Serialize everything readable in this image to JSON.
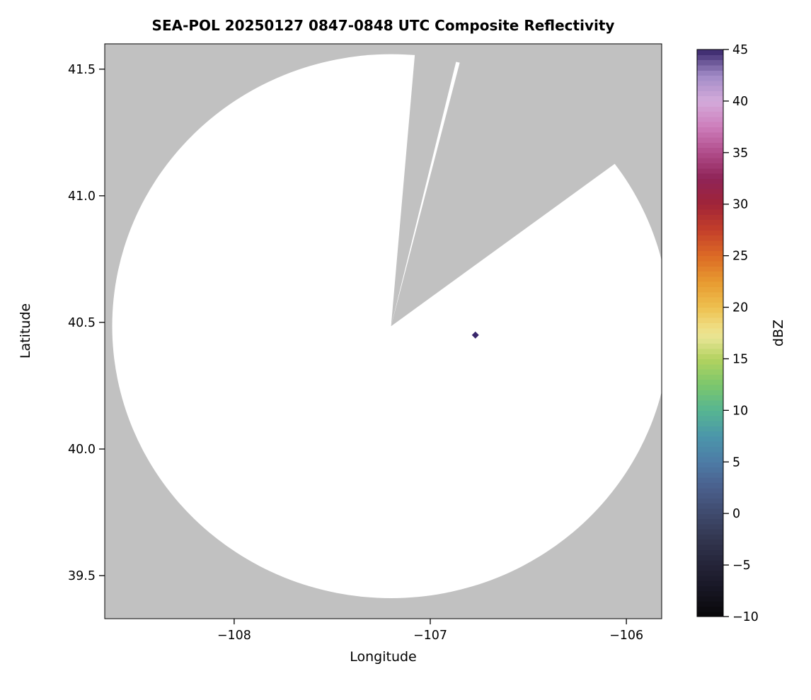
{
  "figure": {
    "background": "#ffffff"
  },
  "chart_data": {
    "type": "heatmap",
    "subtype": "radar-ppi-composite-reflectivity",
    "title": "SEA-POL 20250127 0847-0848 UTC Composite Reflectivity",
    "xlabel": "Longitude",
    "ylabel": "Latitude",
    "xlim": [
      -108.66,
      -105.82
    ],
    "ylim": [
      39.33,
      41.6
    ],
    "xticks": [
      -108,
      -107,
      -106
    ],
    "yticks": [
      39.5,
      40.0,
      40.5,
      41.0,
      41.5
    ],
    "grid": false,
    "plot_background": "#c1c1c1",
    "radar_coverage": {
      "fill": "#ffffff",
      "center": {
        "lon": -107.2,
        "lat": 40.485
      },
      "radius_lat_deg": 1.074,
      "radius_lon_deg": 1.422,
      "missing_sectors_deg_from_north": [
        [
          5.0,
          13.8
        ],
        [
          14.6,
          54.0
        ]
      ]
    },
    "echoes": [
      {
        "lon": -106.77,
        "lat": 40.45,
        "dbz": 45,
        "marker": "diamond"
      }
    ],
    "colorbar": {
      "label": "dBZ",
      "min": -10,
      "max": 45,
      "position": "right",
      "ticks": [
        -10,
        -5,
        0,
        5,
        10,
        15,
        20,
        25,
        30,
        35,
        40,
        45
      ],
      "stops": [
        {
          "v": -10,
          "c": "#070708"
        },
        {
          "v": -7.5,
          "c": "#161522"
        },
        {
          "v": -5,
          "c": "#242338"
        },
        {
          "v": -2.5,
          "c": "#32364f"
        },
        {
          "v": 0,
          "c": "#3f4a6d"
        },
        {
          "v": 2.5,
          "c": "#4a5f8c"
        },
        {
          "v": 5,
          "c": "#4d7ba6"
        },
        {
          "v": 7.5,
          "c": "#4b96aa"
        },
        {
          "v": 10,
          "c": "#56b592"
        },
        {
          "v": 12.5,
          "c": "#7cc76c"
        },
        {
          "v": 15,
          "c": "#b2d25f"
        },
        {
          "v": 17,
          "c": "#e7e493"
        },
        {
          "v": 18,
          "c": "#efdf85"
        },
        {
          "v": 20,
          "c": "#eec04f"
        },
        {
          "v": 22.5,
          "c": "#e79a30"
        },
        {
          "v": 25,
          "c": "#dc6a25"
        },
        {
          "v": 27.5,
          "c": "#c33f2a"
        },
        {
          "v": 30,
          "c": "#a02438"
        },
        {
          "v": 32.5,
          "c": "#8f2457"
        },
        {
          "v": 35,
          "c": "#b04c8a"
        },
        {
          "v": 37.5,
          "c": "#cd7dbb"
        },
        {
          "v": 40,
          "c": "#d4abdb"
        },
        {
          "v": 42.5,
          "c": "#a18bc7"
        },
        {
          "v": 45,
          "c": "#38266b"
        }
      ]
    }
  }
}
